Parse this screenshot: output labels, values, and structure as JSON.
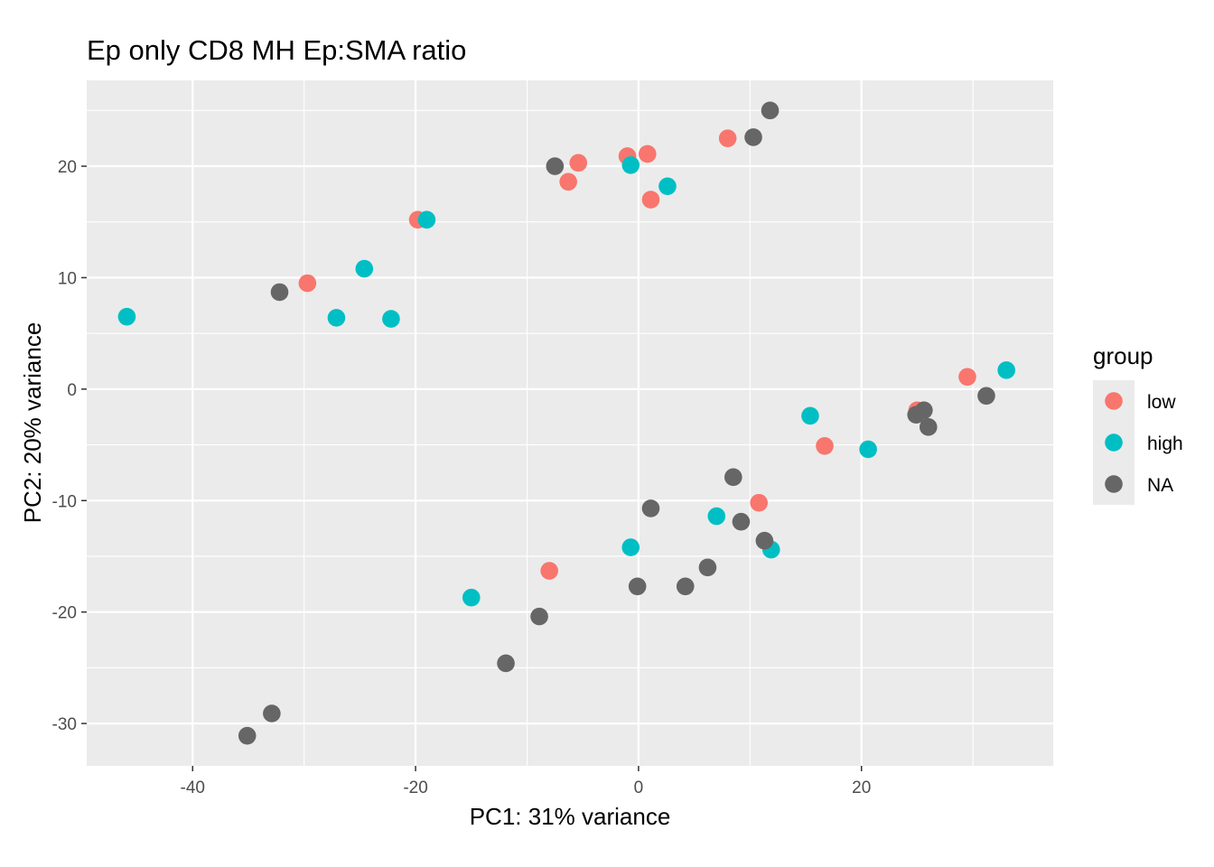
{
  "chart_data": {
    "type": "scatter",
    "title": "Ep only CD8 MH Ep:SMA ratio",
    "xlabel": "PC1: 31% variance",
    "ylabel": "PC2: 20% variance",
    "xlim": [
      -49.5,
      37.2
    ],
    "ylim": [
      -33.8,
      27.7
    ],
    "xticks": [
      -40,
      -20,
      0,
      20
    ],
    "yticks": [
      -30,
      -20,
      -10,
      0,
      10,
      20
    ],
    "grid": true,
    "legend": {
      "title": "group",
      "placement": "right",
      "entries": [
        {
          "label": "low",
          "color": "#F8766D"
        },
        {
          "label": "high",
          "color": "#00BFC4"
        },
        {
          "label": "NA",
          "color": "#666666"
        }
      ]
    },
    "series": [
      {
        "name": "low",
        "color": "#F8766D",
        "points": [
          [
            -19.8,
            15.2
          ],
          [
            -29.7,
            9.5
          ],
          [
            -6.3,
            18.6
          ],
          [
            -5.4,
            20.3
          ],
          [
            -1.0,
            20.9
          ],
          [
            0.8,
            21.1
          ],
          [
            1.1,
            17.0
          ],
          [
            8.0,
            22.5
          ],
          [
            -8.0,
            -16.3
          ],
          [
            10.8,
            -10.2
          ],
          [
            16.7,
            -5.1
          ],
          [
            25.0,
            -1.9
          ],
          [
            29.5,
            1.1
          ]
        ]
      },
      {
        "name": "high",
        "color": "#00BFC4",
        "points": [
          [
            -45.9,
            6.5
          ],
          [
            -27.1,
            6.4
          ],
          [
            -24.6,
            10.8
          ],
          [
            -22.2,
            6.3
          ],
          [
            -19.0,
            15.2
          ],
          [
            -0.7,
            20.1
          ],
          [
            2.6,
            18.2
          ],
          [
            -15.0,
            -18.7
          ],
          [
            -0.7,
            -14.2
          ],
          [
            7.0,
            -11.4
          ],
          [
            11.9,
            -14.4
          ],
          [
            15.4,
            -2.4
          ],
          [
            20.6,
            -5.4
          ],
          [
            33.0,
            1.7
          ]
        ]
      },
      {
        "name": "NA",
        "color": "#666666",
        "points": [
          [
            -32.2,
            8.7
          ],
          [
            -7.5,
            20.0
          ],
          [
            10.3,
            22.6
          ],
          [
            11.8,
            25.0
          ],
          [
            -35.1,
            -31.1
          ],
          [
            -32.9,
            -29.1
          ],
          [
            -11.9,
            -24.6
          ],
          [
            -8.9,
            -20.4
          ],
          [
            -0.1,
            -17.7
          ],
          [
            1.1,
            -10.7
          ],
          [
            4.2,
            -17.7
          ],
          [
            6.2,
            -16.0
          ],
          [
            8.5,
            -7.9
          ],
          [
            9.2,
            -11.9
          ],
          [
            11.3,
            -13.6
          ],
          [
            24.9,
            -2.3
          ],
          [
            25.6,
            -1.9
          ],
          [
            26.0,
            -3.4
          ],
          [
            31.2,
            -0.6
          ]
        ]
      }
    ]
  }
}
